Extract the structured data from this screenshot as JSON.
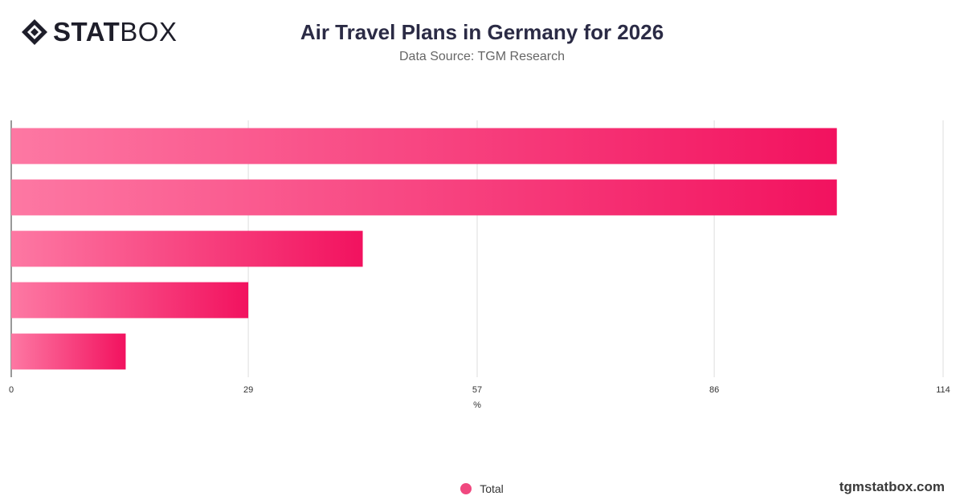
{
  "header": {
    "logo_bold": "STAT",
    "logo_light": "BOX",
    "title": "Air Travel Plans in Germany for 2026",
    "subtitle": "Data Source: TGM Research"
  },
  "chart_data": {
    "type": "bar",
    "orientation": "horizontal",
    "categories": [
      "",
      "",
      "",
      "",
      ""
    ],
    "series": [
      {
        "name": "Total",
        "values": [
          101,
          101,
          43,
          29,
          14
        ]
      }
    ],
    "xlabel": "%",
    "ylabel": "",
    "xlim": [
      0,
      114
    ],
    "xticks": [
      "0",
      "29",
      "57",
      "86",
      "114"
    ],
    "grid": true,
    "legend_position": "bottom",
    "colors": {
      "bar_start": "#fd78a3",
      "bar_end": "#f2125f",
      "grid": "#dddddd",
      "axis": "#333333"
    }
  },
  "legend": {
    "label": "Total",
    "color": "#f0487f"
  },
  "footer": {
    "brand": "tgmstatbox.com"
  }
}
